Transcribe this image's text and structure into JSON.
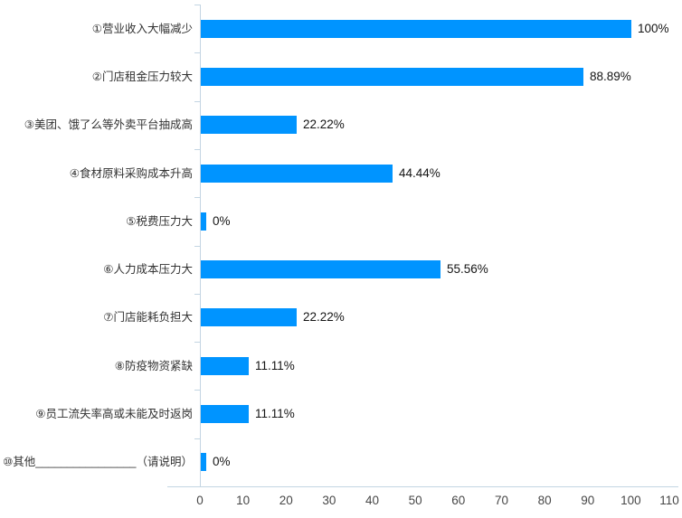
{
  "chart_data": {
    "type": "bar",
    "orientation": "horizontal",
    "title": "",
    "xlabel": "",
    "ylabel": "",
    "categories": [
      "①营业收入大幅减少",
      "②门店租金压力较大",
      "③美团、饿了么等外卖平台抽成高",
      "④食材原料采购成本升高",
      "⑤税费压力大",
      "⑥人力成本压力大",
      "⑦门店能耗负担大",
      "⑧防疫物资紧缺",
      "⑨员工流失率高或未能及时返岗",
      "⑩其他________________（请说明）"
    ],
    "values": [
      100,
      88.89,
      22.22,
      44.44,
      0,
      55.56,
      22.22,
      11.11,
      11.11,
      0
    ],
    "value_labels": [
      "100%",
      "88.89%",
      "22.22%",
      "44.44%",
      "0%",
      "55.56%",
      "22.22%",
      "11.11%",
      "11.11%",
      "0%"
    ],
    "xlim": [
      0,
      110
    ],
    "x_ticks": [
      0,
      10,
      20,
      30,
      40,
      50,
      60,
      70,
      80,
      90,
      100,
      110
    ],
    "grid": false,
    "legend": "none",
    "colors": {
      "bar": "#0094ff",
      "axis_line": "#c3d5e2",
      "category_text": "#333333",
      "value_text": "#141414",
      "tick_text": "#474747",
      "background": "#ffffff"
    }
  }
}
